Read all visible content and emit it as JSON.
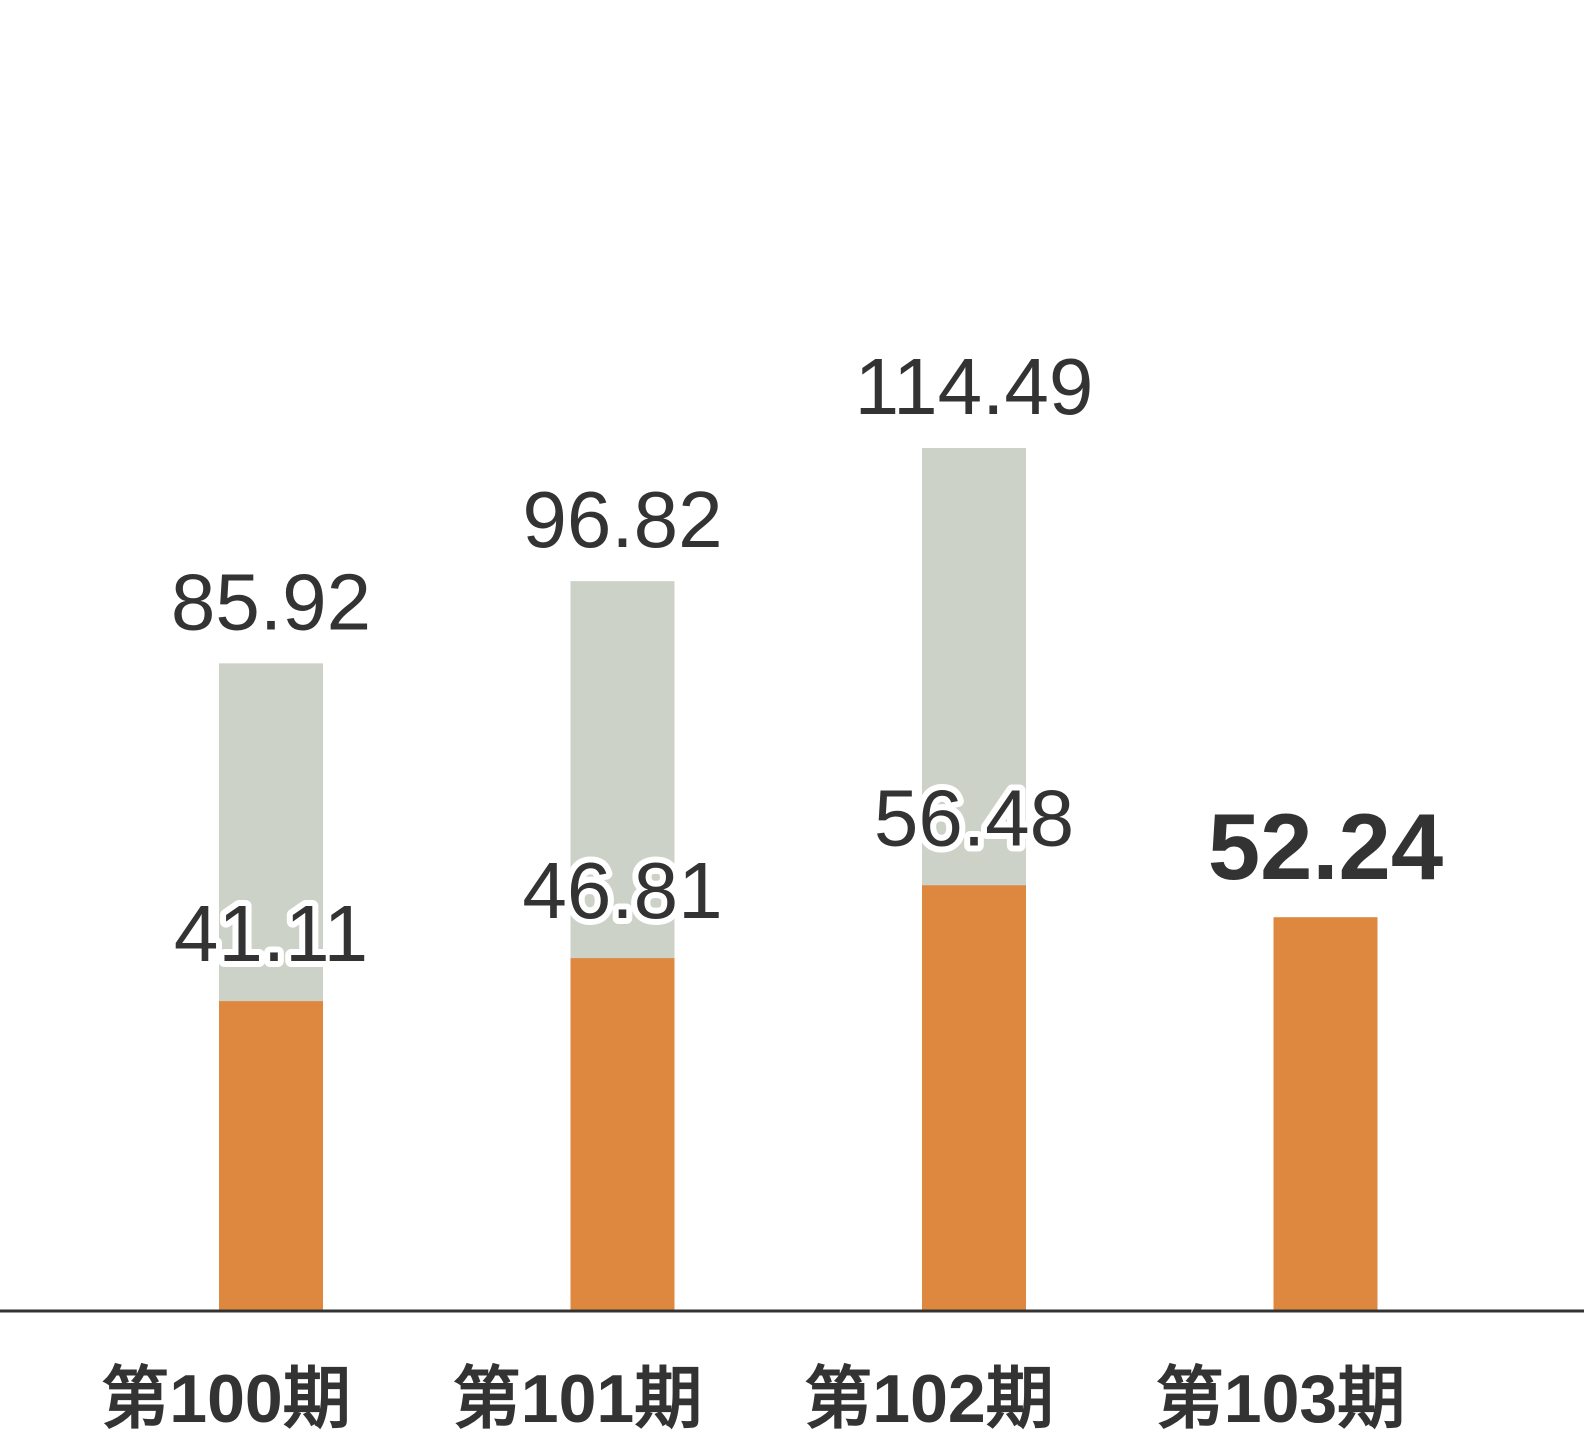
{
  "chart_data": {
    "type": "bar",
    "stacked": false,
    "overlapped": true,
    "categories": [
      "第100期",
      "第101期",
      "第102期",
      "第103期"
    ],
    "series": [
      {
        "values": [
          85.92,
          96.82,
          114.49,
          null
        ],
        "color": "#ccd2c7",
        "value_labels": [
          "85.92",
          "96.82",
          "114.49",
          ""
        ]
      },
      {
        "values": [
          41.11,
          46.81,
          56.48,
          52.24
        ],
        "color": "#de873f",
        "value_labels": [
          "41.11",
          "46.81",
          "56.48",
          "52.24"
        ],
        "highlight_index": 3
      }
    ],
    "ylim": [
      0,
      140
    ],
    "grid": false,
    "legend": "none",
    "axis_color": "#333333",
    "text_color": "#333333"
  }
}
